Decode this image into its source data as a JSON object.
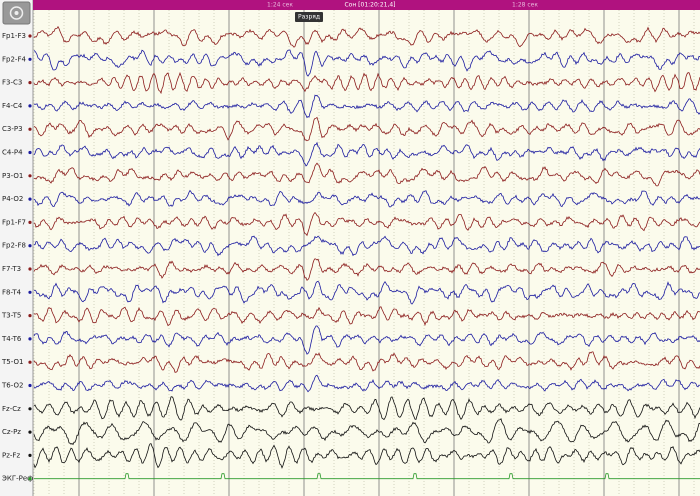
{
  "toolbar": {
    "time_left": "1:24 сек",
    "state": "Сон [01:20:21,4]",
    "time_right": "1:28 сек"
  },
  "marker": "Разряд",
  "channels": [
    {
      "label": "Fp1-F3",
      "color": "#8b1c1c"
    },
    {
      "label": "Fp2-F4",
      "color": "#1c1ca0"
    },
    {
      "label": "F3-C3",
      "color": "#8b1c1c"
    },
    {
      "label": "F4-C4",
      "color": "#1c1ca0"
    },
    {
      "label": "C3-P3",
      "color": "#8b1c1c"
    },
    {
      "label": "C4-P4",
      "color": "#1c1ca0"
    },
    {
      "label": "P3-O1",
      "color": "#8b1c1c"
    },
    {
      "label": "P4-O2",
      "color": "#1c1ca0"
    },
    {
      "label": "Fp1-F7",
      "color": "#8b1c1c"
    },
    {
      "label": "Fp2-F8",
      "color": "#1c1ca0"
    },
    {
      "label": "F7-T3",
      "color": "#8b1c1c"
    },
    {
      "label": "F8-T4",
      "color": "#1c1ca0"
    },
    {
      "label": "T3-T5",
      "color": "#8b1c1c"
    },
    {
      "label": "T4-T6",
      "color": "#1c1ca0"
    },
    {
      "label": "T5-O1",
      "color": "#8b1c1c"
    },
    {
      "label": "T6-O2",
      "color": "#1c1ca0"
    },
    {
      "label": "Fz-Cz",
      "color": "#111111"
    },
    {
      "label": "Cz-Pz",
      "color": "#111111"
    },
    {
      "label": "Pz-Fz",
      "color": "#111111"
    },
    {
      "label": "ЭКГ-Реф",
      "color": "#2a9a2a"
    }
  ]
}
